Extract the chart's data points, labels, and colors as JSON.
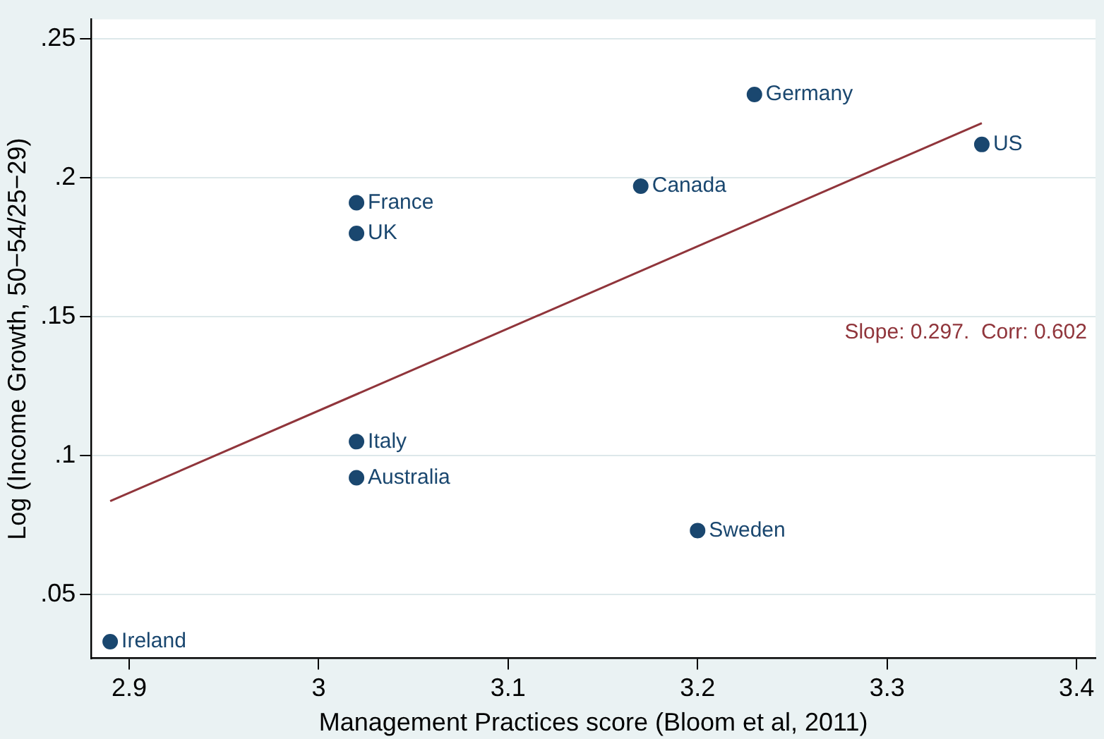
{
  "chart_data": {
    "type": "scatter",
    "xlabel": "Management Practices score (Bloom et al, 2011)",
    "ylabel": "Log (Income Growth, 50−54/25−29)",
    "xlim": [
      2.88,
      3.41
    ],
    "xticks": [
      2.9,
      3,
      3.1,
      3.2,
      3.3,
      3.4
    ],
    "ylim": [
      0.027,
      0.257
    ],
    "yticks": [
      {
        "value": 0.05,
        "label": ".05"
      },
      {
        "value": 0.1,
        "label": ".1"
      },
      {
        "value": 0.15,
        "label": ".15"
      },
      {
        "value": 0.2,
        "label": ".2"
      },
      {
        "value": 0.25,
        "label": ".25"
      }
    ],
    "grid": "y",
    "legend": false,
    "marker": "circle",
    "series": [
      {
        "name": "Ireland",
        "color": "#1a476f",
        "x": [
          2.89
        ],
        "values": [
          0.033
        ]
      },
      {
        "name": "France",
        "color": "#1a476f",
        "x": [
          3.02
        ],
        "values": [
          0.191
        ]
      },
      {
        "name": "UK",
        "color": "#1a476f",
        "x": [
          3.02
        ],
        "values": [
          0.18
        ]
      },
      {
        "name": "Italy",
        "color": "#1a476f",
        "x": [
          3.02
        ],
        "values": [
          0.105
        ]
      },
      {
        "name": "Australia",
        "color": "#1a476f",
        "x": [
          3.02
        ],
        "values": [
          0.092
        ]
      },
      {
        "name": "Canada",
        "color": "#1a476f",
        "x": [
          3.17
        ],
        "values": [
          0.197
        ]
      },
      {
        "name": "Germany",
        "color": "#1a476f",
        "x": [
          3.23
        ],
        "values": [
          0.23
        ]
      },
      {
        "name": "US",
        "color": "#1a476f",
        "x": [
          3.35
        ],
        "values": [
          0.212
        ]
      },
      {
        "name": "Sweden",
        "color": "#1a476f",
        "x": [
          3.2
        ],
        "values": [
          0.073
        ]
      },
      {
        "type": "line",
        "marker": "none",
        "color": "#90353b",
        "x": [
          2.89,
          3.35
        ],
        "values": [
          0.0836,
          0.2197
        ]
      }
    ],
    "annotations": [
      "Slope: 0.297.  Corr: 0.602"
    ]
  }
}
